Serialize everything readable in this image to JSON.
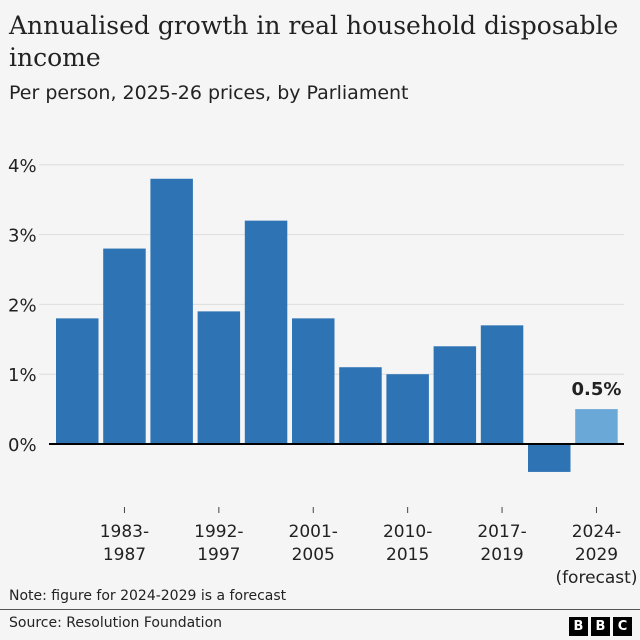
{
  "chart_data": {
    "type": "bar",
    "title": "Annualised growth in real household disposable income",
    "subtitle": "Per person, 2025-26 prices, by Parliament",
    "values": [
      1.8,
      2.8,
      3.8,
      1.9,
      3.2,
      1.8,
      1.1,
      1.0,
      1.4,
      1.7,
      -0.4,
      0.5
    ],
    "x_tick_labels": [
      {
        "bar_index": 1,
        "lines": [
          "1983-",
          "1987"
        ]
      },
      {
        "bar_index": 3,
        "lines": [
          "1992-",
          "1997"
        ]
      },
      {
        "bar_index": 5,
        "lines": [
          "2001-",
          "2005"
        ]
      },
      {
        "bar_index": 7,
        "lines": [
          "2010-",
          "2015"
        ]
      },
      {
        "bar_index": 9,
        "lines": [
          "2017-",
          "2019"
        ]
      },
      {
        "bar_index": 11,
        "lines": [
          "2024-",
          "2029",
          "(forecast)"
        ]
      }
    ],
    "y_ticks": [
      0,
      1,
      2,
      3,
      4
    ],
    "y_tick_labels": [
      "0%",
      "1%",
      "2%",
      "3%",
      "4%"
    ],
    "ylim": [
      -0.5,
      4
    ],
    "grid": true,
    "data_labels": [
      {
        "bar_index": 11,
        "text": "0.5%"
      }
    ],
    "colors": {
      "bar": "#2e74b5",
      "forecast_bar": "#6aa8d8",
      "grid": "#dcdcdc",
      "axis": "#000000"
    }
  },
  "note": "Note: figure for 2024-2029 is a forecast",
  "source": "Source: Resolution Foundation",
  "logo": [
    "B",
    "B",
    "C"
  ]
}
